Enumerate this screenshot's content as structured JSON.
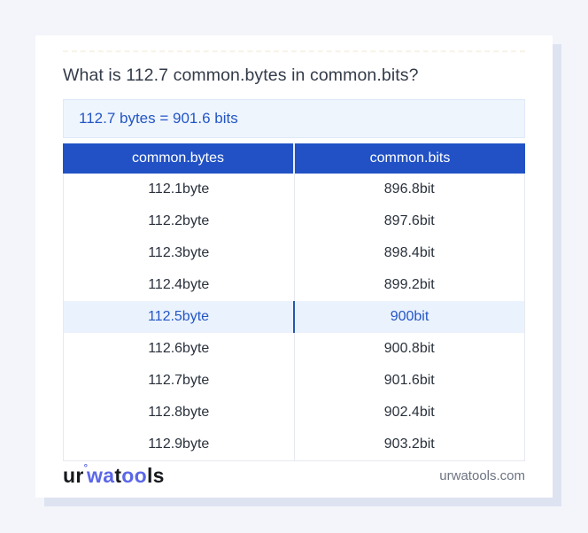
{
  "header": {
    "question": "What is 112.7 common.bytes in common.bits?",
    "result": "112.7 bytes = 901.6 bits"
  },
  "colors": {
    "page_background": "#f3f5fa",
    "card_shadow": "#dde3f1",
    "table_header_blue": "#2151c5",
    "highlight_row_background": "#eaf2fd",
    "accent_text_blue": "#2356c5",
    "highlight_divider_blue": "#2457ad",
    "result_box_background": "#eff5fd",
    "logo_blue": "#5b67e8"
  },
  "table": {
    "headers": [
      "common.bytes",
      "common.bits"
    ],
    "highlight_index": 4,
    "rows": [
      {
        "bytes": "112.1byte",
        "bits": "896.8bit"
      },
      {
        "bytes": "112.2byte",
        "bits": "897.6bit"
      },
      {
        "bytes": "112.3byte",
        "bits": "898.4bit"
      },
      {
        "bytes": "112.4byte",
        "bits": "899.2bit"
      },
      {
        "bytes": "112.5byte",
        "bits": "900bit"
      },
      {
        "bytes": "112.6byte",
        "bits": "900.8bit"
      },
      {
        "bytes": "112.7byte",
        "bits": "901.6bit"
      },
      {
        "bytes": "112.8byte",
        "bits": "902.4bit"
      },
      {
        "bytes": "112.9byte",
        "bits": "903.2bit"
      }
    ]
  },
  "footer": {
    "domain": "urwatools.com",
    "logo_parts": [
      {
        "text": "ur",
        "blue": false,
        "sup": false
      },
      {
        "text": "°",
        "blue": true,
        "sup": true
      },
      {
        "text": "wa",
        "blue": true,
        "sup": false
      },
      {
        "text": "t",
        "blue": false,
        "sup": false
      },
      {
        "text": "oo",
        "blue": true,
        "sup": false
      },
      {
        "text": "ls",
        "blue": false,
        "sup": false
      }
    ]
  }
}
